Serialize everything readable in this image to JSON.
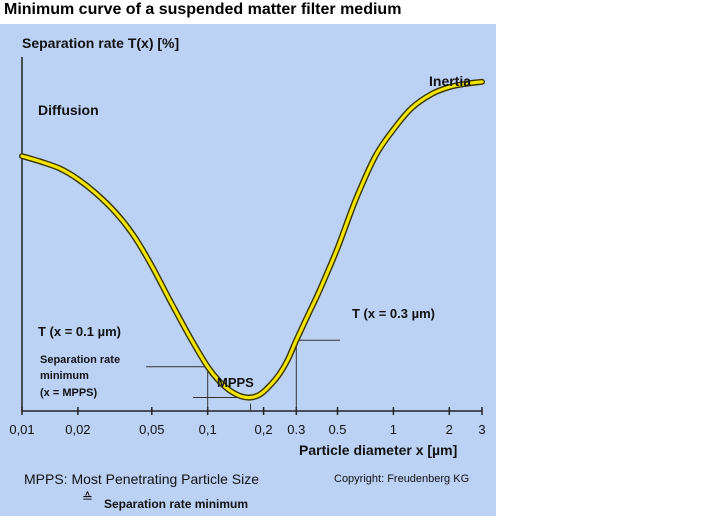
{
  "chart_data": {
    "type": "line",
    "title": "Minimum curve of a suspended matter filter medium",
    "ylabel": "Separation rate T(x) [%]",
    "xlabel": "Particle diameter x [µm]",
    "x_scale": "log",
    "xlim": [
      0.01,
      3
    ],
    "ylim": [
      0,
      100
    ],
    "x_ticks": [
      {
        "value": 0.01,
        "label": "0,01"
      },
      {
        "value": 0.02,
        "label": "0,02"
      },
      {
        "value": 0.05,
        "label": "0,05"
      },
      {
        "value": 0.1,
        "label": "0,1"
      },
      {
        "value": 0.2,
        "label": "0,2"
      },
      {
        "value": 0.3,
        "label": "0.3"
      },
      {
        "value": 0.5,
        "label": "0.5"
      },
      {
        "value": 1,
        "label": "1"
      },
      {
        "value": 2,
        "label": "2"
      },
      {
        "value": 3,
        "label": "3"
      }
    ],
    "series": [
      {
        "color": "#f2e500",
        "x": [
          0.01,
          0.0125,
          0.016,
          0.02,
          0.025,
          0.032,
          0.04,
          0.05,
          0.063,
          0.08,
          0.1,
          0.115,
          0.13,
          0.15,
          0.17,
          0.19,
          0.21,
          0.24,
          0.27,
          0.3,
          0.35,
          0.4,
          0.5,
          0.63,
          0.8,
          1.0,
          1.25,
          1.6,
          2.0,
          2.5,
          3.0
        ],
        "y": [
          72,
          70.5,
          68.5,
          65.5,
          61.5,
          56,
          49.5,
          41,
          31,
          21,
          12.5,
          8.5,
          6,
          4.2,
          3.8,
          4.6,
          6.5,
          10,
          14.5,
          20,
          27.5,
          34,
          46,
          60,
          72,
          79.5,
          85.5,
          89.5,
          91.5,
          92.5,
          93
        ]
      }
    ],
    "annotations": {
      "diffusion": "Diffusion",
      "inertia": "Inertia",
      "t01": "T (x = 0.1 µm)",
      "t03": "T (x = 0.3 µm)",
      "mpps": "MPPS",
      "sep_min_1": "Separation rate",
      "sep_min_2": "minimum",
      "sep_min_3": "(x = MPPS)"
    },
    "grid": false
  },
  "footer": {
    "mpps_definition": "MPPS: Most Penetrating Particle Size",
    "equiv_symbol": "≙",
    "equiv_text": "Separation rate minimum",
    "copyright": "Copyright: Freudenberg KG"
  },
  "colors": {
    "panel_background": "#bcd2f5",
    "curve": "#f2e500",
    "curve_outline": "#3a3300"
  }
}
